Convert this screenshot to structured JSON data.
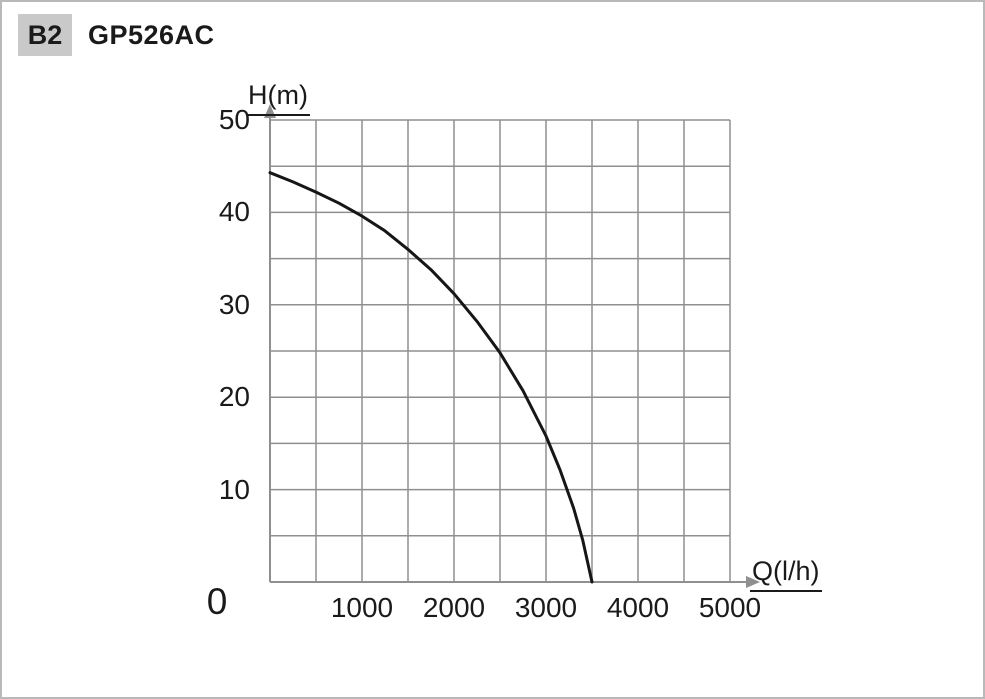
{
  "header": {
    "badge": "B2",
    "title": "GP526AC"
  },
  "chart_data": {
    "type": "line",
    "title": "GP526AC",
    "xlabel": "Q(l/h)",
    "ylabel": "H(m)",
    "xlim": [
      0,
      5000
    ],
    "ylim": [
      0,
      50
    ],
    "x_ticks": [
      1000,
      2000,
      3000,
      4000,
      5000
    ],
    "y_ticks": [
      10,
      20,
      30,
      40,
      50
    ],
    "origin_label": "0",
    "grid": {
      "on": true,
      "step_x": 500,
      "step_y": 5
    },
    "legend": "none",
    "series": [
      {
        "name": "GP526AC pump curve",
        "x": [
          0,
          250,
          500,
          750,
          1000,
          1250,
          1500,
          1750,
          2000,
          2250,
          2500,
          2750,
          3000,
          3150,
          3300,
          3400,
          3500
        ],
        "y": [
          44.3,
          43.3,
          42.2,
          41.0,
          39.6,
          38.0,
          36.0,
          33.8,
          31.2,
          28.2,
          24.8,
          20.7,
          15.8,
          12.2,
          8.0,
          4.5,
          0
        ]
      }
    ],
    "colors": {
      "curve": "#161616",
      "grid": "#8f8f8f",
      "axis": "#8f8f8f",
      "badge_bg": "#c9c9c9"
    }
  }
}
